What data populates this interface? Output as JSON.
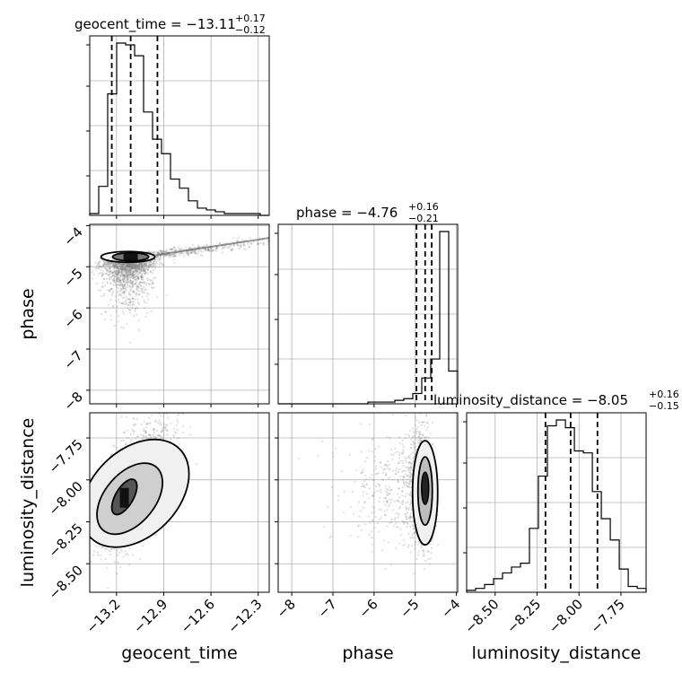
{
  "chart_data": {
    "type": "corner",
    "parameters": [
      "geocent_time",
      "phase",
      "luminosity_distance"
    ],
    "colors": {
      "hist": "#000000",
      "grid": "#b0b0b0",
      "points": "#808080",
      "contour": "#000000"
    },
    "grid": true,
    "titles": [
      {
        "param": "geocent_time",
        "text": "geocent_time = −13.11",
        "plus": "+0.17",
        "minus": "−0.12"
      },
      {
        "param": "phase",
        "text": "phase = −4.76",
        "plus": "+0.16",
        "minus": "−0.21"
      },
      {
        "param": "luminosity_distance",
        "text": "luminosity_distance = −8.05",
        "plus": "+0.16",
        "minus": "−0.15"
      }
    ],
    "axes": {
      "geocent_time": {
        "range": [
          -13.37,
          -12.23
        ],
        "ticks": [
          -13.2,
          -12.9,
          -12.6,
          -12.3
        ],
        "tick_labels": [
          "−13.2",
          "−12.9",
          "−12.6",
          "−12.3"
        ],
        "label": "geocent_time"
      },
      "phase": {
        "range": [
          -8.33,
          -3.97
        ],
        "ticks": [
          -8,
          -7,
          -6,
          -5,
          -4
        ],
        "tick_labels": [
          "−8",
          "−7",
          "−6",
          "−5",
          "−4"
        ],
        "label": "phase"
      },
      "luminosity_distance": {
        "range": [
          -8.67,
          -7.6
        ],
        "ticks": [
          -8.5,
          -8.25,
          -8.0,
          -7.75
        ],
        "tick_labels": [
          "−8.50",
          "−8.25",
          "−8.00",
          "−7.75"
        ],
        "label": "luminosity_distance"
      }
    },
    "histograms": {
      "geocent_time": {
        "bin_edges": [
          -13.37,
          -13.313,
          -13.256,
          -13.199,
          -13.142,
          -13.085,
          -13.028,
          -12.971,
          -12.914,
          -12.857,
          -12.8,
          -12.743,
          -12.686,
          -12.629,
          -12.572,
          -12.515,
          -12.458,
          -12.401,
          -12.344,
          -12.287,
          -12.23
        ],
        "counts": [
          1,
          16,
          67,
          95,
          94,
          88,
          57,
          42,
          34,
          20,
          15,
          8,
          4,
          3,
          2,
          1,
          1,
          1,
          1,
          0
        ],
        "quantiles": [
          -13.23,
          -13.11,
          -12.94
        ]
      },
      "phase": {
        "bin_edges": [
          -8.33,
          -8.112,
          -7.894,
          -7.676,
          -7.458,
          -7.24,
          -7.022,
          -6.804,
          -6.586,
          -6.368,
          -6.15,
          -5.932,
          -5.714,
          -5.496,
          -5.278,
          -5.06,
          -4.842,
          -4.624,
          -4.406,
          -4.188,
          -3.97
        ],
        "counts": [
          0,
          0,
          0,
          0,
          0,
          0,
          0,
          0,
          0,
          0,
          1,
          1,
          1,
          2,
          3,
          6,
          15,
          26,
          100,
          19
        ],
        "quantiles": [
          -4.97,
          -4.76,
          -4.6
        ]
      },
      "luminosity_distance": {
        "bin_edges": [
          -8.67,
          -8.6165,
          -8.563,
          -8.5095,
          -8.456,
          -8.4025,
          -8.349,
          -8.2955,
          -8.242,
          -8.1885,
          -8.135,
          -8.081,
          -8.0275,
          -7.974,
          -7.9205,
          -7.867,
          -7.8135,
          -7.76,
          -7.7065,
          -7.653,
          -7.6
        ],
        "counts": [
          1,
          2,
          4,
          7,
          10,
          13,
          15,
          33,
          60,
          86,
          89,
          85,
          73,
          72,
          52,
          38,
          27,
          12,
          3,
          2
        ],
        "quantiles": [
          -8.2,
          -8.05,
          -7.89
        ]
      }
    },
    "scatter": [
      {
        "x_param": "geocent_time",
        "y_param": "phase",
        "peak": [
          -13.11,
          -4.76
        ],
        "points": 2000
      },
      {
        "x_param": "geocent_time",
        "y_param": "luminosity_distance",
        "peak": [
          -13.15,
          -8.08
        ],
        "points": 2000
      },
      {
        "x_param": "phase",
        "y_param": "luminosity_distance",
        "peak": [
          -4.76,
          -8.05
        ],
        "points": 1500
      }
    ]
  }
}
